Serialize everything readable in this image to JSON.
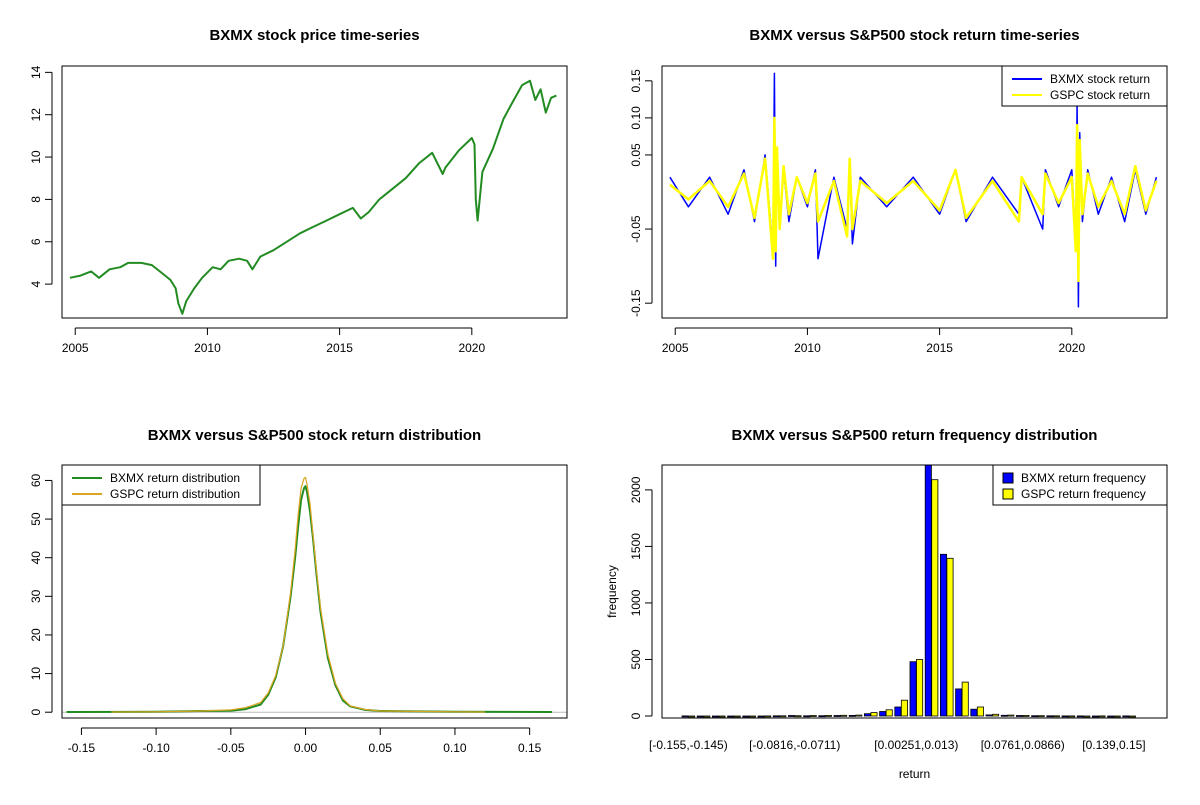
{
  "chart_data": [
    {
      "id": "price",
      "type": "line",
      "title": "BXMX stock price time-series",
      "xlabel": "",
      "ylabel": "",
      "xlim": [
        2004.5,
        2023.6
      ],
      "ylim": [
        2.4,
        14.3
      ],
      "xticks": [
        2005,
        2010,
        2015,
        2020
      ],
      "xtick_labels": [
        "2005",
        "2010",
        "2015",
        "2020"
      ],
      "yticks": [
        4,
        6,
        8,
        10,
        12,
        14
      ],
      "ytick_labels": [
        "4",
        "6",
        "8",
        "10",
        "12",
        "14"
      ],
      "color": "#228B22",
      "series": [
        {
          "name": "BXMX price",
          "x": [
            2004.8,
            2005.2,
            2005.6,
            2005.9,
            2006.3,
            2006.7,
            2007.0,
            2007.5,
            2007.9,
            2008.3,
            2008.6,
            2008.8,
            2008.9,
            2009.05,
            2009.2,
            2009.5,
            2009.8,
            2010.2,
            2010.5,
            2010.8,
            2011.2,
            2011.5,
            2011.7,
            2012.0,
            2012.5,
            2013.0,
            2013.5,
            2014.0,
            2014.5,
            2015.0,
            2015.5,
            2015.8,
            2016.1,
            2016.5,
            2017.0,
            2017.5,
            2018.0,
            2018.5,
            2018.9,
            2019.0,
            2019.5,
            2020.0,
            2020.1,
            2020.15,
            2020.22,
            2020.4,
            2020.8,
            2021.2,
            2021.5,
            2021.9,
            2022.2,
            2022.4,
            2022.6,
            2022.8,
            2023.0,
            2023.2
          ],
          "y": [
            4.3,
            4.4,
            4.6,
            4.3,
            4.7,
            4.8,
            5.0,
            5.0,
            4.9,
            4.5,
            4.2,
            3.8,
            3.1,
            2.6,
            3.2,
            3.8,
            4.3,
            4.8,
            4.7,
            5.1,
            5.2,
            5.1,
            4.7,
            5.3,
            5.6,
            6.0,
            6.4,
            6.7,
            7.0,
            7.3,
            7.6,
            7.1,
            7.4,
            8.0,
            8.5,
            9.0,
            9.7,
            10.2,
            9.2,
            9.5,
            10.3,
            10.9,
            10.6,
            8.0,
            7.0,
            9.3,
            10.4,
            11.8,
            12.5,
            13.4,
            13.6,
            12.7,
            13.2,
            12.1,
            12.8,
            12.9
          ]
        }
      ]
    },
    {
      "id": "returns",
      "type": "line",
      "title": "BXMX versus S&P500 stock return time-series",
      "xlabel": "",
      "ylabel": "",
      "xlim": [
        2004.5,
        2023.6
      ],
      "ylim": [
        -0.17,
        0.17
      ],
      "xticks": [
        2005,
        2010,
        2015,
        2020
      ],
      "xtick_labels": [
        "2005",
        "2010",
        "2015",
        "2020"
      ],
      "yticks": [
        -0.15,
        -0.05,
        0.05,
        0.1,
        0.15
      ],
      "ytick_labels": [
        "-0.15",
        "-0.05",
        "0.05",
        "0.10",
        "0.15"
      ],
      "legend_position": "top-right",
      "series": [
        {
          "name": "BXMX stock return",
          "color": "#0000FF",
          "x": [
            2004.8,
            2005.5,
            2006.3,
            2007.0,
            2007.6,
            2008.0,
            2008.4,
            2008.7,
            2008.75,
            2008.8,
            2008.85,
            2008.95,
            2009.1,
            2009.3,
            2009.6,
            2010.0,
            2010.3,
            2010.4,
            2011.0,
            2011.5,
            2011.6,
            2011.7,
            2012.0,
            2013.0,
            2014.0,
            2015.0,
            2015.6,
            2016.0,
            2017.0,
            2018.0,
            2018.1,
            2018.9,
            2019.0,
            2019.5,
            2020.0,
            2020.15,
            2020.2,
            2020.25,
            2020.3,
            2020.4,
            2020.6,
            2021.0,
            2021.5,
            2022.0,
            2022.4,
            2022.8,
            2023.2
          ],
          "y": [
            0.02,
            -0.02,
            0.02,
            -0.03,
            0.03,
            -0.04,
            0.05,
            -0.08,
            0.16,
            -0.1,
            0.06,
            -0.05,
            0.03,
            -0.04,
            0.02,
            -0.02,
            0.03,
            -0.09,
            0.02,
            -0.05,
            0.04,
            -0.07,
            0.02,
            -0.02,
            0.02,
            -0.03,
            0.03,
            -0.04,
            0.02,
            -0.03,
            0.02,
            -0.05,
            0.03,
            -0.02,
            0.03,
            -0.07,
            0.12,
            -0.155,
            0.08,
            -0.04,
            0.03,
            -0.03,
            0.02,
            -0.04,
            0.03,
            -0.03,
            0.02
          ]
        },
        {
          "name": "GSPC stock return",
          "color": "#FFFF00",
          "x": [
            2004.8,
            2005.5,
            2006.3,
            2007.0,
            2007.6,
            2008.0,
            2008.4,
            2008.7,
            2008.75,
            2008.8,
            2008.85,
            2008.95,
            2009.1,
            2009.3,
            2009.6,
            2010.0,
            2010.3,
            2010.4,
            2011.0,
            2011.5,
            2011.6,
            2011.7,
            2012.0,
            2013.0,
            2014.0,
            2015.0,
            2015.6,
            2016.0,
            2017.0,
            2018.0,
            2018.1,
            2018.9,
            2019.0,
            2019.5,
            2020.0,
            2020.15,
            2020.2,
            2020.25,
            2020.3,
            2020.4,
            2020.6,
            2021.0,
            2021.5,
            2022.0,
            2022.4,
            2022.8,
            2023.2
          ],
          "y": [
            0.01,
            -0.01,
            0.015,
            -0.02,
            0.025,
            -0.035,
            0.045,
            -0.09,
            0.1,
            -0.08,
            0.06,
            -0.05,
            0.035,
            -0.03,
            0.02,
            -0.015,
            0.025,
            -0.04,
            0.015,
            -0.06,
            0.045,
            -0.05,
            0.015,
            -0.015,
            0.015,
            -0.025,
            0.03,
            -0.035,
            0.015,
            -0.04,
            0.02,
            -0.03,
            0.025,
            -0.015,
            0.02,
            -0.08,
            0.09,
            -0.12,
            0.07,
            -0.03,
            0.025,
            -0.02,
            0.015,
            -0.03,
            0.035,
            -0.025,
            0.015
          ]
        }
      ]
    },
    {
      "id": "density",
      "type": "line",
      "title": "BXMX versus S&P500 stock return distribution",
      "xlabel": "",
      "ylabel": "",
      "xlim": [
        -0.163,
        0.175
      ],
      "ylim": [
        -1.5,
        64
      ],
      "xticks": [
        -0.15,
        -0.1,
        -0.05,
        0.0,
        0.05,
        0.1,
        0.15
      ],
      "xtick_labels": [
        "-0.15",
        "-0.10",
        "-0.05",
        "0.00",
        "0.05",
        "0.10",
        "0.15"
      ],
      "yticks": [
        0,
        10,
        20,
        30,
        40,
        50,
        60
      ],
      "ytick_labels": [
        "0",
        "10",
        "20",
        "30",
        "40",
        "50",
        "60"
      ],
      "legend_position": "top-left",
      "series": [
        {
          "name": "BXMX return distribution",
          "color": "#228B22",
          "x": [
            -0.16,
            -0.1,
            -0.07,
            -0.05,
            -0.04,
            -0.03,
            -0.025,
            -0.02,
            -0.015,
            -0.01,
            -0.007,
            -0.005,
            -0.003,
            -0.001,
            0.0,
            0.001,
            0.003,
            0.005,
            0.007,
            0.01,
            0.015,
            0.02,
            0.025,
            0.03,
            0.04,
            0.05,
            0.1,
            0.165
          ],
          "y": [
            0.05,
            0.1,
            0.3,
            0.4,
            0.8,
            2,
            4.5,
            9,
            17,
            30,
            40,
            48,
            55,
            58,
            58.5,
            57,
            52,
            45,
            37,
            26,
            14,
            7,
            3,
            1.5,
            0.6,
            0.3,
            0.1,
            0.05
          ]
        },
        {
          "name": "GSPC return distribution",
          "color": "#DAA520",
          "x": [
            -0.13,
            -0.1,
            -0.07,
            -0.05,
            -0.04,
            -0.03,
            -0.025,
            -0.02,
            -0.015,
            -0.01,
            -0.007,
            -0.005,
            -0.003,
            -0.001,
            0.0,
            0.001,
            0.003,
            0.005,
            0.007,
            0.01,
            0.015,
            0.02,
            0.025,
            0.03,
            0.04,
            0.05,
            0.1,
            0.12
          ],
          "y": [
            0.05,
            0.1,
            0.3,
            0.6,
            1.2,
            2.5,
            5,
            9.5,
            17,
            31,
            42,
            51,
            58,
            60.5,
            60.8,
            59,
            54,
            46,
            38,
            27,
            15,
            7.5,
            3.5,
            1.6,
            0.7,
            0.3,
            0.1,
            0.05
          ]
        }
      ]
    },
    {
      "id": "histogram",
      "type": "bar",
      "title": "BXMX versus S&P500 return frequency distribution",
      "xlabel": "return",
      "ylabel": "frequency",
      "ylim": [
        0,
        2220
      ],
      "yticks": [
        0,
        500,
        1000,
        1500,
        2000
      ],
      "ytick_labels": [
        "0",
        "500",
        "1000",
        "1500",
        "2000"
      ],
      "category_labels_shown": [
        "[-0.155,-0.145)",
        "[-0.0816,-0.0711)",
        "[0.00251,0.013)",
        "[0.0761,0.0866)",
        "[0.139,0.15]"
      ],
      "category_label_indices": [
        0,
        7,
        15,
        22,
        28
      ],
      "n_categories": 30,
      "legend_position": "top-right",
      "series": [
        {
          "name": "BXMX return frequency",
          "color": "#0000FF",
          "values": [
            1,
            0,
            0,
            0,
            0,
            0,
            2,
            4,
            2,
            3,
            4,
            5,
            20,
            40,
            80,
            480,
            2230,
            1430,
            240,
            60,
            10,
            6,
            4,
            3,
            2,
            1,
            1,
            0,
            0,
            1
          ]
        },
        {
          "name": "GSPC return frequency",
          "color": "#FFFF00",
          "values": [
            0,
            0,
            0,
            0,
            0,
            1,
            2,
            3,
            4,
            5,
            6,
            8,
            30,
            55,
            140,
            500,
            2090,
            1395,
            300,
            80,
            15,
            8,
            5,
            3,
            2,
            1,
            0,
            1,
            0,
            0
          ]
        }
      ]
    }
  ]
}
